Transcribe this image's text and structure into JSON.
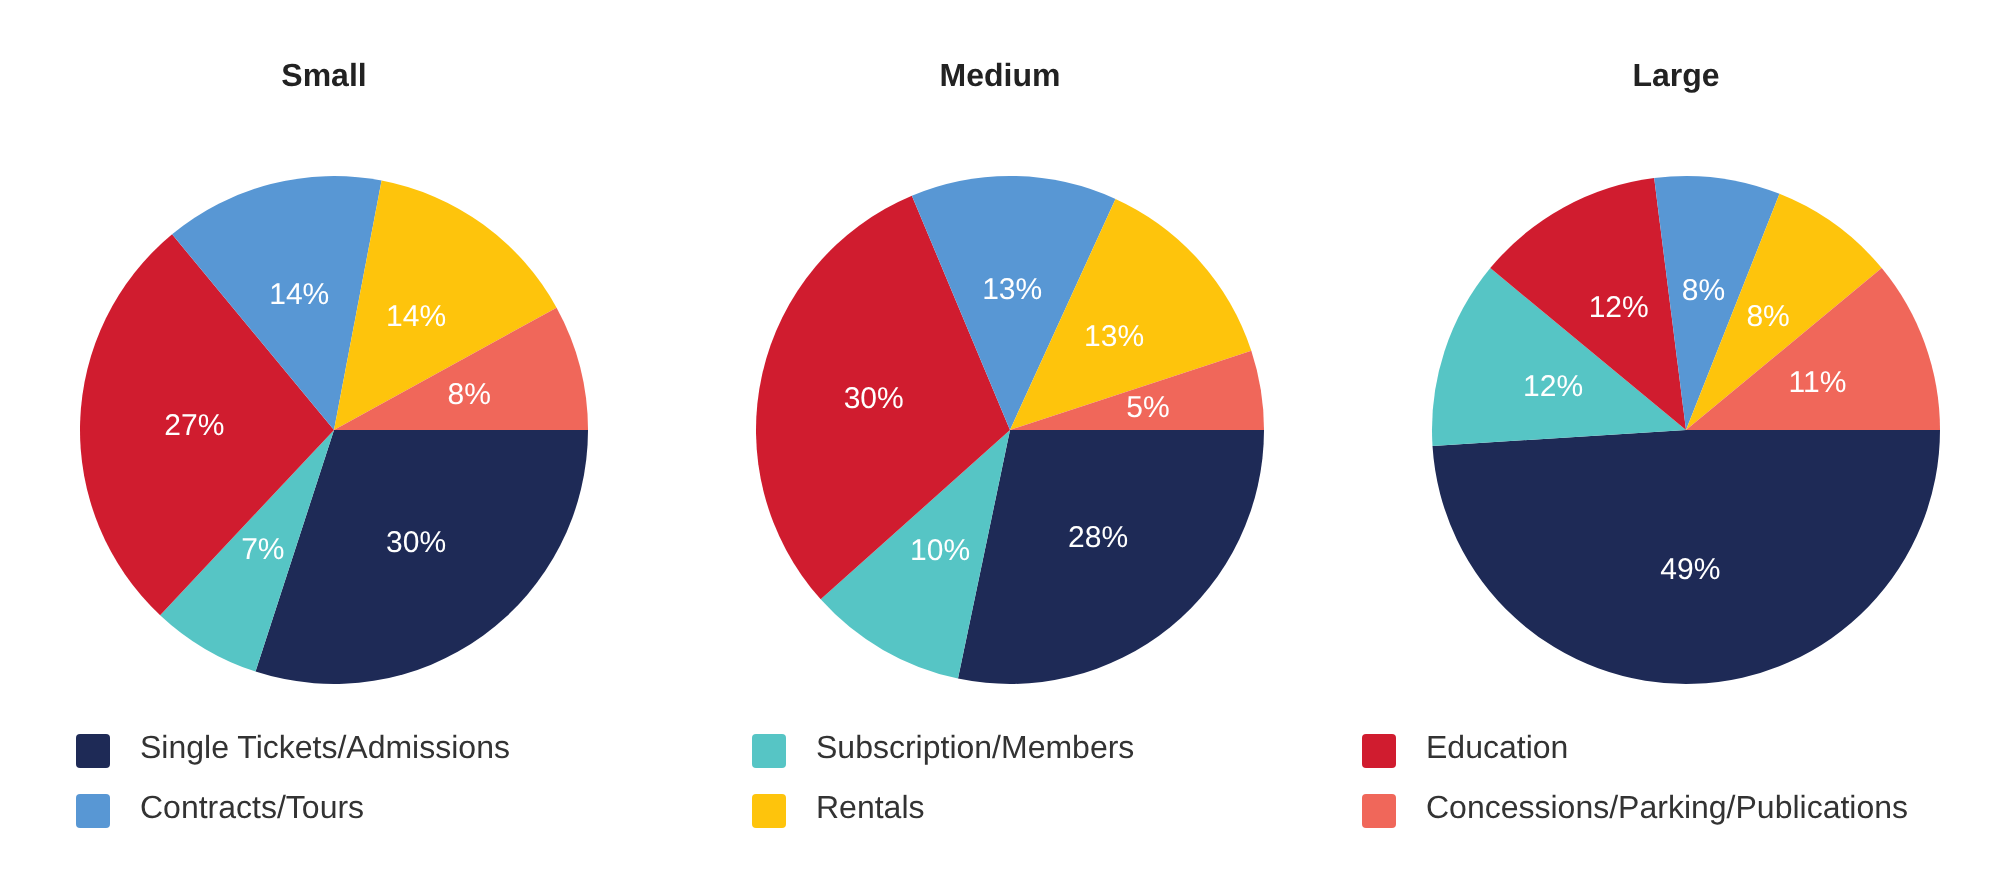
{
  "chart_data": [
    {
      "type": "pie",
      "title": "Small",
      "categories": [
        "Single Tickets/Admissions",
        "Subscription/Members",
        "Education",
        "Contracts/Tours",
        "Rentals",
        "Concessions/Parking/Publications"
      ],
      "values": [
        30,
        7,
        27,
        14,
        14,
        8
      ],
      "value_labels": [
        "30%",
        "7%",
        "27%",
        "14%",
        "14%",
        "8%"
      ],
      "colors": [
        "#1e2a56",
        "#56c5c5",
        "#d01c2f",
        "#5897d4",
        "#fec40c",
        "#f0675a"
      ],
      "legend": "bottom"
    },
    {
      "type": "pie",
      "title": "Medium",
      "categories": [
        null,
        null,
        null,
        null,
        null,
        null
      ],
      "values": [
        28,
        10,
        30,
        13,
        13,
        5
      ],
      "value_labels": [
        "28%",
        "10%",
        "30%",
        "13%",
        "13%",
        "5%"
      ],
      "colors": [
        "#1e2a56",
        "#56c5c5",
        "#d01c2f",
        "#5897d4",
        "#fec40c",
        "#f0675a"
      ]
    },
    {
      "type": "pie",
      "title": "Large",
      "categories": [
        null,
        null,
        null,
        null,
        null,
        null
      ],
      "values": [
        49,
        12,
        12,
        8,
        8,
        11
      ],
      "value_labels": [
        "49%",
        "12%",
        "12%",
        "8%",
        "8%",
        "11%"
      ],
      "colors": [
        "#1e2a56",
        "#56c5c5",
        "#d01c2f",
        "#5897d4",
        "#fec40c",
        "#f0675a"
      ]
    }
  ]
}
